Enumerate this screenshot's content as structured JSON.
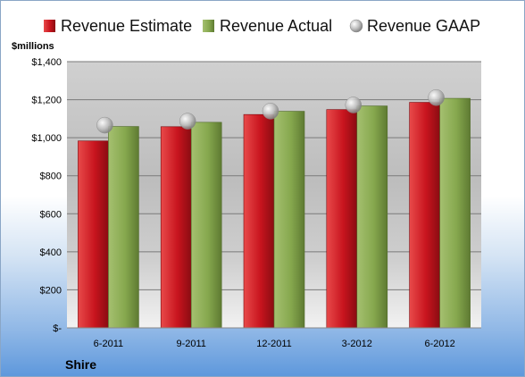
{
  "chart_data": {
    "type": "bar",
    "unit_label": "$millions",
    "company": "Shire",
    "categories": [
      "6-2011",
      "9-2011",
      "12-2011",
      "3-2012",
      "6-2012"
    ],
    "series": [
      {
        "name": "Revenue Estimate",
        "kind": "bar",
        "color": "#c8141e",
        "values": [
          983,
          1058,
          1122,
          1148,
          1186
        ]
      },
      {
        "name": "Revenue Actual",
        "kind": "bar",
        "color": "#86a84e",
        "values": [
          1059,
          1081,
          1139,
          1167,
          1207
        ]
      },
      {
        "name": "Revenue GAAP",
        "kind": "marker",
        "color": "#b0b0b0",
        "values": [
          1066,
          1087,
          1140,
          1172,
          1211
        ]
      }
    ],
    "ylim": [
      0,
      1400
    ],
    "yticks": [
      0,
      200,
      400,
      600,
      800,
      1000,
      1200,
      1400
    ],
    "ytick_labels": [
      "$-",
      "$200",
      "$400",
      "$600",
      "$800",
      "$1,000",
      "$1,200",
      "$1,400"
    ],
    "legend_position": "top",
    "grid": true
  }
}
